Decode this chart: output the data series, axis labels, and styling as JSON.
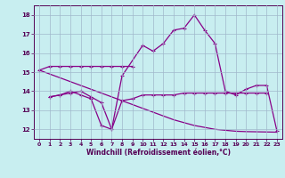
{
  "xlabel": "Windchill (Refroidissement éolien,°C)",
  "bg_color": "#c8eef0",
  "grid_color": "#a0b8cc",
  "line_color": "#880088",
  "xlim": [
    -0.5,
    23.5
  ],
  "ylim": [
    11.5,
    18.5
  ],
  "yticks": [
    12,
    13,
    14,
    15,
    16,
    17,
    18
  ],
  "xticks": [
    0,
    1,
    2,
    3,
    4,
    5,
    6,
    7,
    8,
    9,
    10,
    11,
    12,
    13,
    14,
    15,
    16,
    17,
    18,
    19,
    20,
    21,
    22,
    23
  ],
  "series": [
    {
      "x": [
        0,
        1,
        2,
        3,
        4,
        5,
        6,
        7,
        8,
        9
      ],
      "y": [
        15.1,
        15.3,
        15.3,
        15.3,
        15.3,
        15.3,
        15.3,
        15.3,
        15.3,
        15.3
      ],
      "marker": true
    },
    {
      "x": [
        1,
        2,
        3,
        4,
        5,
        6,
        7,
        8,
        10,
        11,
        12,
        13,
        14,
        15,
        16,
        17,
        18,
        19,
        20,
        21,
        22,
        23
      ],
      "y": [
        13.7,
        13.8,
        13.9,
        14.0,
        13.7,
        13.4,
        12.0,
        14.8,
        16.4,
        16.1,
        16.5,
        17.2,
        17.3,
        18.0,
        17.2,
        16.5,
        14.0,
        13.8,
        14.1,
        14.3,
        14.3,
        11.9
      ],
      "marker": true
    },
    {
      "x": [
        1,
        2,
        3,
        4,
        5,
        6,
        7,
        8,
        9,
        10,
        11,
        12,
        13,
        14,
        15,
        16,
        17,
        18,
        19,
        20,
        21,
        22
      ],
      "y": [
        13.7,
        13.8,
        14.0,
        13.8,
        13.6,
        12.2,
        12.0,
        13.5,
        13.6,
        13.8,
        13.8,
        13.8,
        13.8,
        13.9,
        13.9,
        13.9,
        13.9,
        13.9,
        13.9,
        13.9,
        13.9,
        13.9
      ],
      "marker": true
    },
    {
      "x": [
        0,
        1,
        2,
        3,
        4,
        5,
        6,
        7,
        8,
        9,
        10,
        11,
        12,
        13,
        14,
        15,
        16,
        17,
        18,
        19,
        20,
        21,
        22,
        23
      ],
      "y": [
        15.1,
        14.9,
        14.7,
        14.5,
        14.3,
        14.1,
        13.9,
        13.7,
        13.5,
        13.3,
        13.1,
        12.9,
        12.7,
        12.5,
        12.35,
        12.2,
        12.1,
        12.0,
        11.95,
        11.9,
        11.88,
        11.87,
        11.86,
        11.85
      ],
      "marker": false
    }
  ]
}
